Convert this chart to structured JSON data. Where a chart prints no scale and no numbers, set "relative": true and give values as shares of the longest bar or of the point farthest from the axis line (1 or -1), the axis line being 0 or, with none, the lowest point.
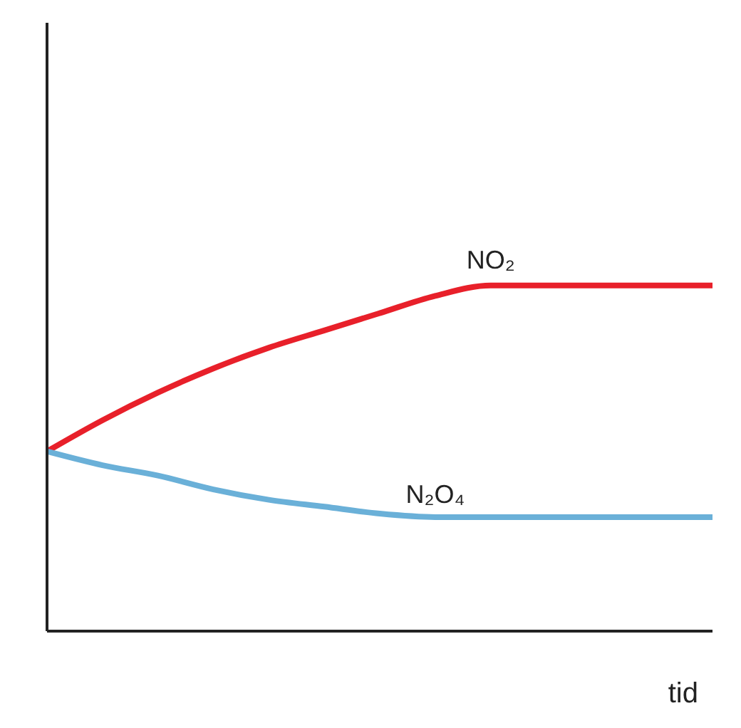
{
  "chart_data": {
    "type": "line",
    "xlabel": "tid",
    "relative": true,
    "categories": [
      null,
      null,
      null,
      null,
      null,
      null,
      null,
      null,
      null,
      null,
      null,
      null,
      null
    ],
    "series": [
      {
        "name": "NO₂",
        "color": "#e8202a",
        "values": [
          0.52,
          0.61,
          0.69,
          0.76,
          0.82,
          0.87,
          0.92,
          0.97,
          1,
          1,
          1,
          1,
          1
        ]
      },
      {
        "name": "N₂O₄",
        "color": "#6ab0d8",
        "values": [
          0.52,
          0.48,
          0.45,
          0.41,
          0.38,
          0.36,
          0.34,
          0.33,
          0.33,
          0.33,
          0.33,
          0.33,
          0.33
        ]
      }
    ]
  }
}
